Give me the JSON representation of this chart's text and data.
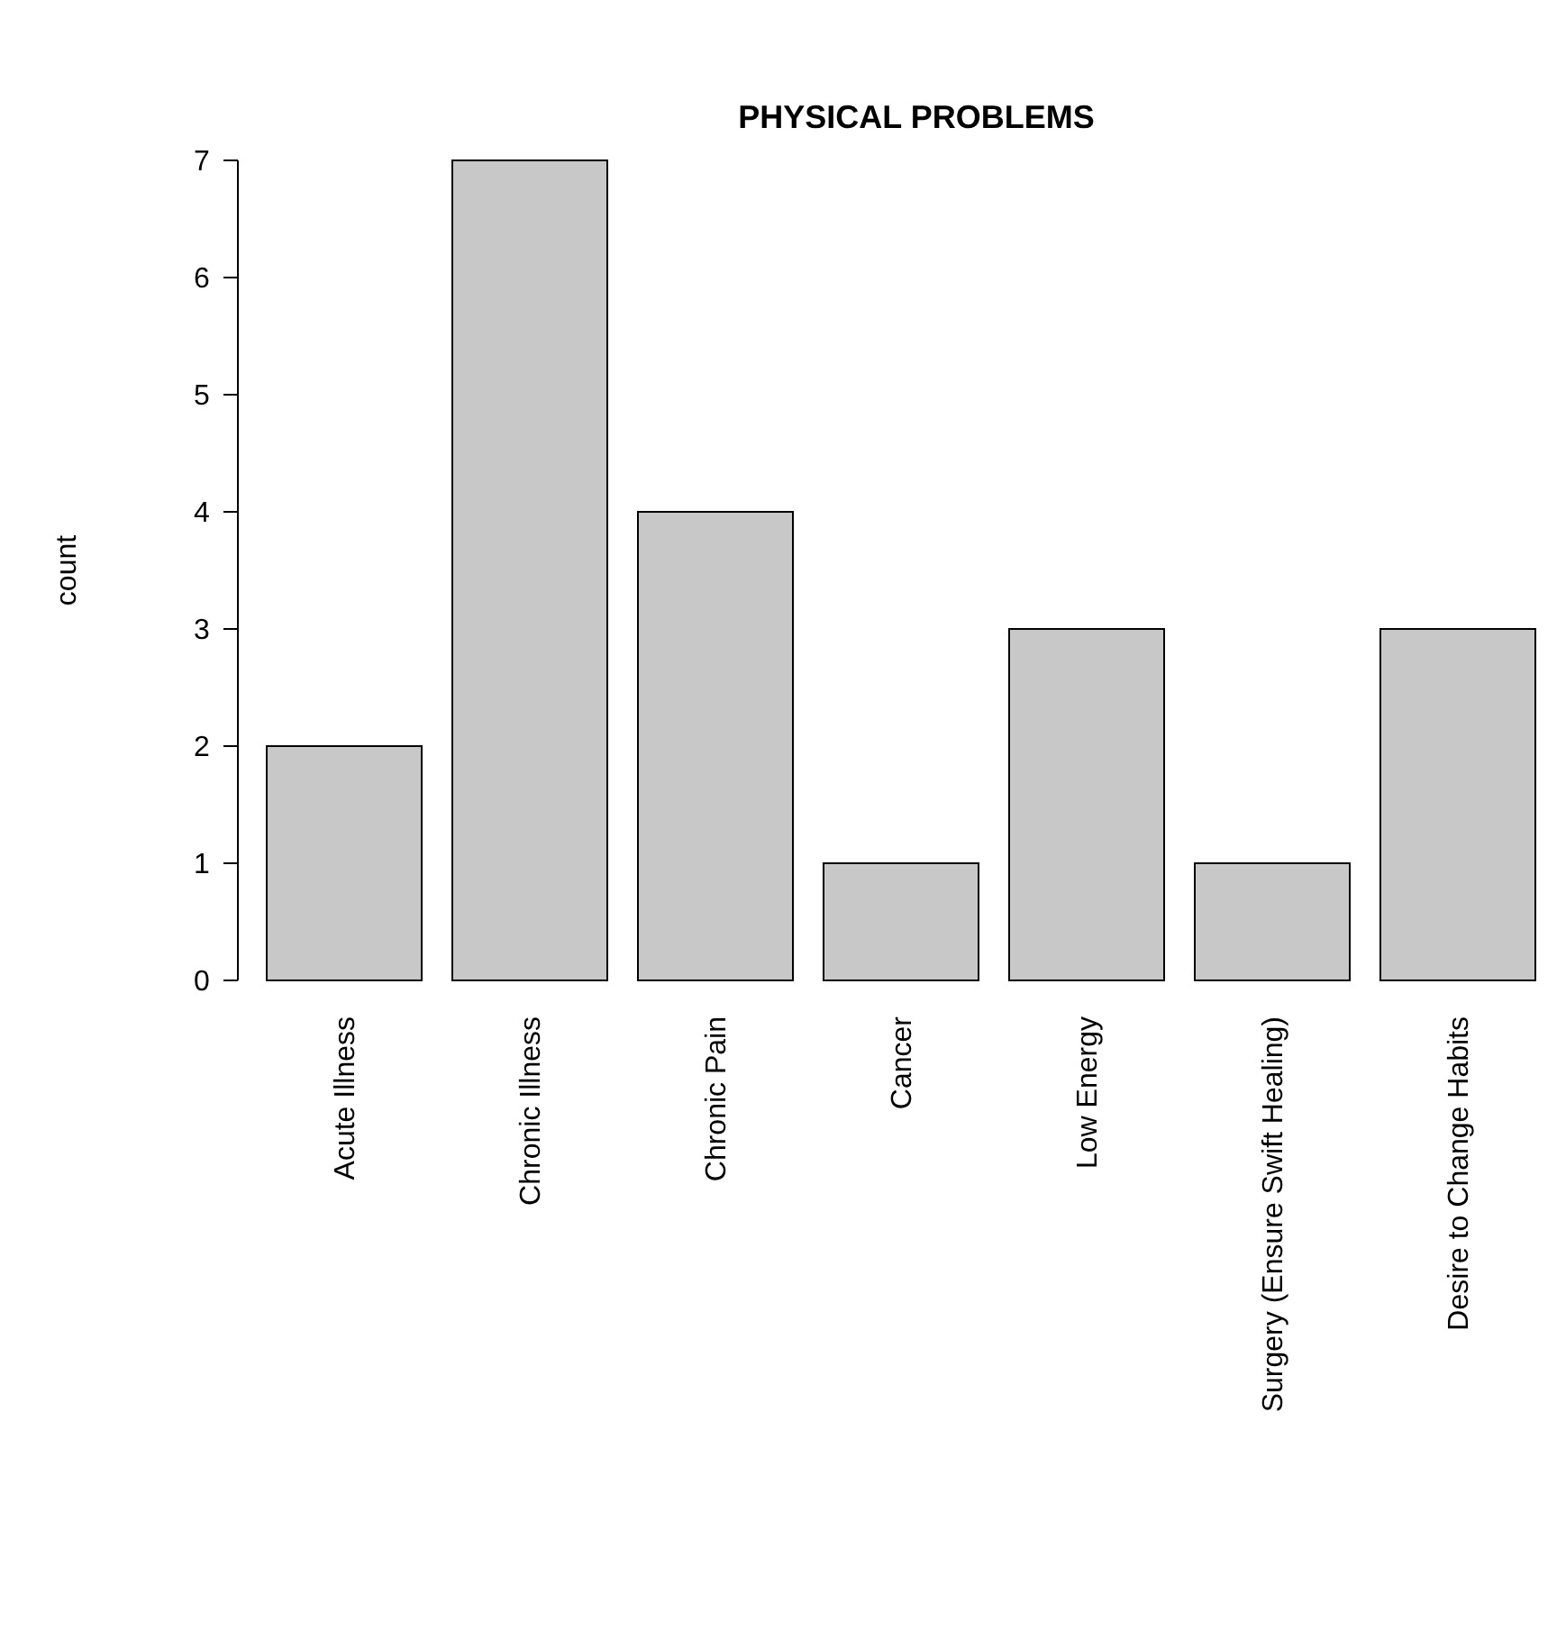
{
  "chart_data": {
    "type": "bar",
    "title": "PHYSICAL PROBLEMS",
    "ylabel": "count",
    "categories": [
      "Acute Illness",
      "Chronic Illness",
      "Chronic Pain",
      "Cancer",
      "Low Energy",
      "Surgery (Ensure Swift Healing)",
      "Desire to Change Habits"
    ],
    "values": [
      2,
      7,
      4,
      1,
      3,
      1,
      3
    ],
    "color": "#c8c8c8",
    "ylim": [
      0,
      7
    ],
    "yticks": [
      0,
      1,
      2,
      3,
      4,
      5,
      6,
      7
    ],
    "grid": false
  }
}
